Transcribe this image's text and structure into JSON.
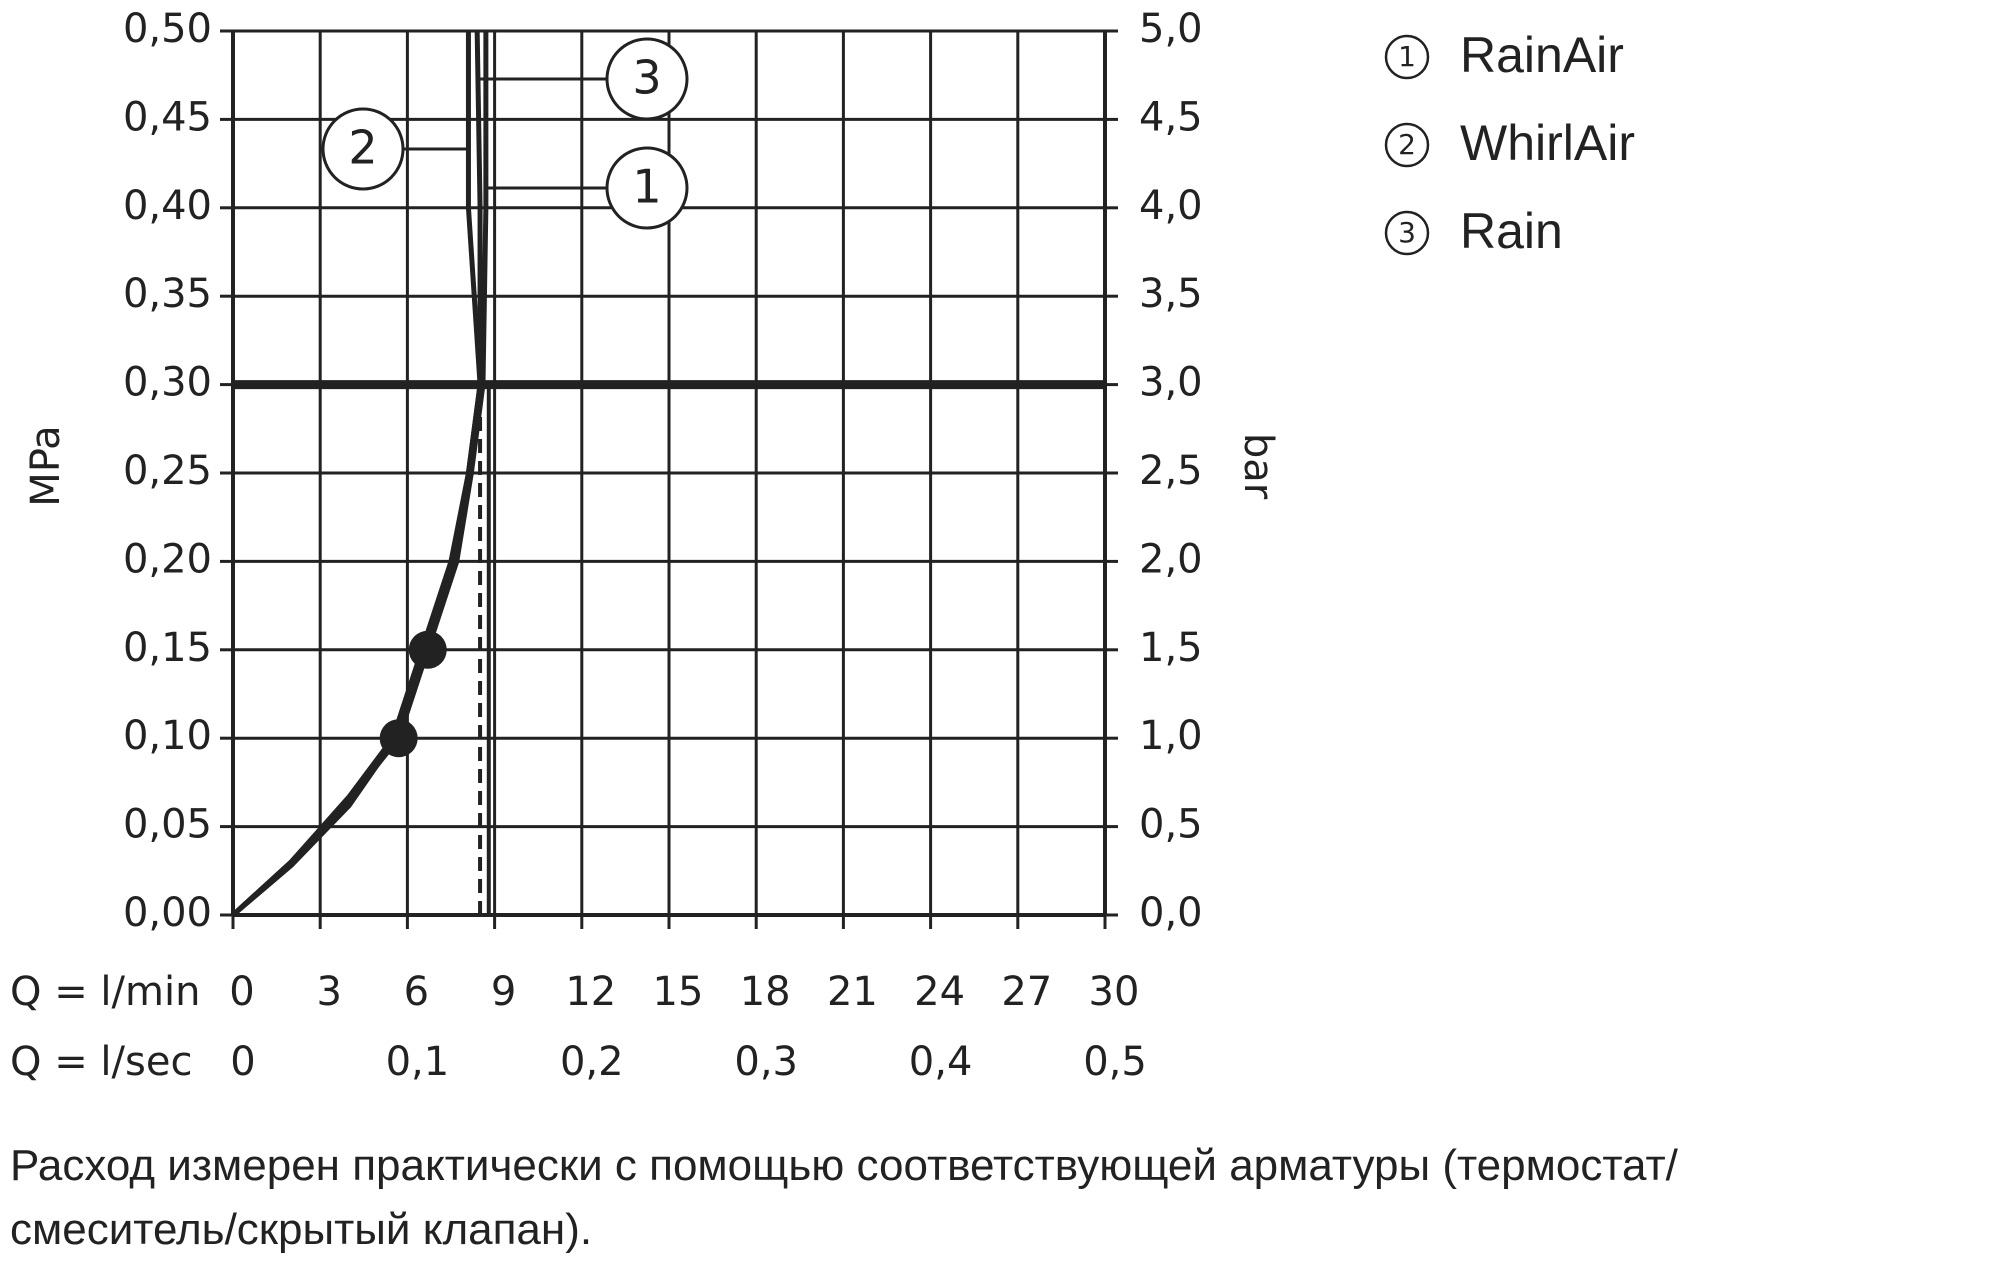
{
  "chart_data": {
    "type": "line",
    "xlabel": "Q = l/min",
    "x2label": "Q = l/sec",
    "ylabel": "MPa",
    "y2label": "bar",
    "xlim": [
      0,
      30
    ],
    "xticks": [
      0,
      3,
      6,
      9,
      12,
      15,
      18,
      21,
      24,
      27,
      30
    ],
    "x2lim": [
      0,
      0.5
    ],
    "x2ticks": [
      0,
      {
        "value": 0.1,
        "label": "0,1"
      },
      {
        "value": 0.2,
        "label": "0,2"
      },
      {
        "value": 0.3,
        "label": "0,3"
      },
      {
        "value": 0.4,
        "label": "0,4"
      },
      {
        "value": 0.5,
        "label": "0,5"
      }
    ],
    "ylim": [
      0,
      0.5
    ],
    "yticks": [
      {
        "value": 0,
        "label": "0,00"
      },
      {
        "value": 0.05,
        "label": "0,05"
      },
      {
        "value": 0.1,
        "label": "0,10"
      },
      {
        "value": 0.15,
        "label": "0,15"
      },
      {
        "value": 0.2,
        "label": "0,20"
      },
      {
        "value": 0.25,
        "label": "0,25"
      },
      {
        "value": 0.3,
        "label": "0,30"
      },
      {
        "value": 0.35,
        "label": "0,35"
      },
      {
        "value": 0.4,
        "label": "0,40"
      },
      {
        "value": 0.45,
        "label": "0,45"
      },
      {
        "value": 0.5,
        "label": "0,50"
      }
    ],
    "y2lim": [
      0,
      5
    ],
    "y2ticks": [
      {
        "value": 0,
        "label": "0,0"
      },
      {
        "value": 0.5,
        "label": "0,5"
      },
      {
        "value": 1,
        "label": "1,0"
      },
      {
        "value": 1.5,
        "label": "1,5"
      },
      {
        "value": 2,
        "label": "2,0"
      },
      {
        "value": 2.5,
        "label": "2,5"
      },
      {
        "value": 3,
        "label": "3,0"
      },
      {
        "value": 3.5,
        "label": "3,5"
      },
      {
        "value": 4,
        "label": "4,0"
      },
      {
        "value": 4.5,
        "label": "4,5"
      },
      {
        "value": 5,
        "label": "5,0"
      }
    ],
    "grid": true,
    "legend": "top-right",
    "series": [
      {
        "name": "RainAir",
        "marker_label": "1",
        "color": "#222222",
        "x": [
          0,
          2,
          4,
          5.7,
          6.7,
          7.7,
          8.2,
          8.6,
          8.7,
          8.7
        ],
        "values": [
          0,
          0.03,
          0.065,
          0.1,
          0.15,
          0.2,
          0.25,
          0.3,
          0.4,
          0.5
        ]
      },
      {
        "name": "WhirlAir",
        "marker_label": "2",
        "color": "#222222",
        "x": [
          0,
          2,
          4,
          5.5,
          6.5,
          7.5,
          8.1,
          8.5,
          8.3,
          8.1,
          8.1
        ],
        "values": [
          0,
          0.03,
          0.067,
          0.1,
          0.15,
          0.2,
          0.25,
          0.3,
          0.35,
          0.4,
          0.5
        ]
      },
      {
        "name": "Rain",
        "marker_label": "3",
        "color": "#222222",
        "x": [
          0,
          2,
          4,
          5.6,
          6.6,
          7.6,
          8.1,
          8.5,
          8.5,
          8.4
        ],
        "values": [
          0,
          0.028,
          0.062,
          0.1,
          0.15,
          0.2,
          0.25,
          0.3,
          0.4,
          0.5
        ]
      }
    ],
    "points": [
      {
        "x": 5.7,
        "y": 0.1
      },
      {
        "x": 6.7,
        "y": 0.15
      }
    ],
    "reference_lines": [
      {
        "axis": "y",
        "value": 0.3,
        "style": "solid"
      },
      {
        "axis": "x",
        "value": 8.5,
        "style": "dashed",
        "to": 0.3
      },
      {
        "axis": "x",
        "value": 8.8,
        "style": "solid",
        "to": 0.3
      }
    ],
    "note_lines": [
      "Расход измерен практически с помощью соответствующей арматуры (термостат/",
      "смеситель/скрытый клапан)."
    ]
  }
}
